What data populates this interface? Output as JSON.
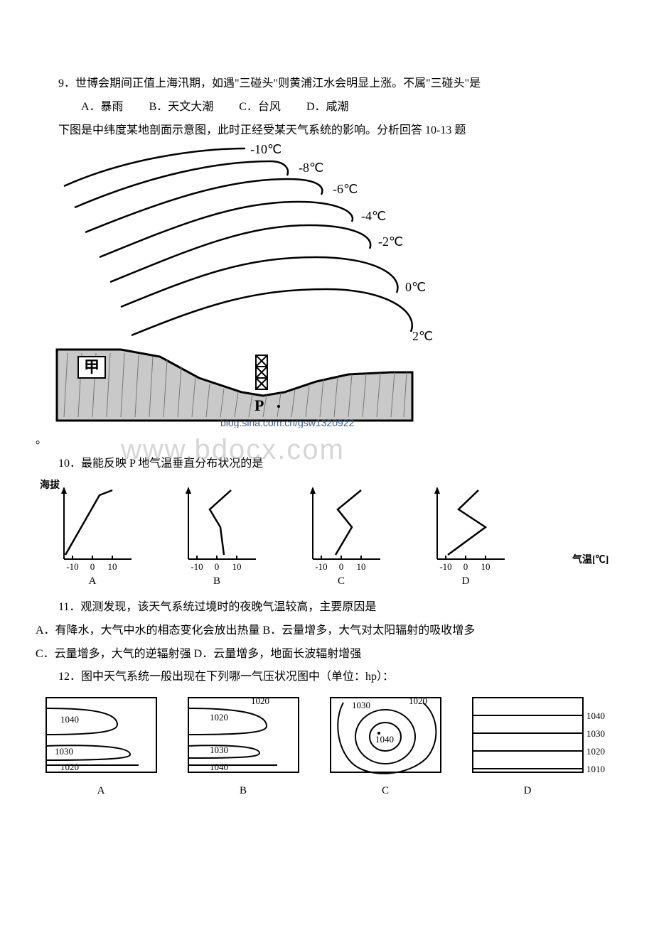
{
  "q9": {
    "text": "9．世博会期间正值上海汛期，如遇\"三碰头\"则黄浦江水会明显上涨。不属\"三碰头\"是",
    "optA": "A．暴雨",
    "optB": "B．天文大潮",
    "optC": "C．台风",
    "optD": "D．咸潮"
  },
  "fig1_intro": "下图是中纬度某地剖面示意图，此时正经受某天气系统的影响。分析回答 10-13 题",
  "fig1": {
    "isotherms": [
      {
        "label": "-10℃"
      },
      {
        "label": "-8℃"
      },
      {
        "label": "-6℃"
      },
      {
        "label": "-4℃"
      },
      {
        "label": "-2℃"
      },
      {
        "label": "0℃"
      },
      {
        "label": "2℃"
      }
    ],
    "area_label": "甲",
    "p_label": "P",
    "blog_text": "blog.sina.com.cn/gsw1320922",
    "bg": "#ffffff",
    "line_color": "#000000"
  },
  "period_after_fig1": "。",
  "watermark": "www.bdocx.com",
  "q10": {
    "text": "10．最能反映 P 地气温垂直分布状况的是"
  },
  "fig2": {
    "y_label": "海拔",
    "x_label": "气温[℃]",
    "ticks": [
      "-10",
      "0",
      "10"
    ],
    "panels": [
      {
        "label": "A",
        "points": [
          [
            2,
            94
          ],
          [
            50,
            10
          ],
          [
            68,
            3
          ]
        ]
      },
      {
        "label": "B",
        "points": [
          [
            50,
            94
          ],
          [
            45,
            55
          ],
          [
            30,
            30
          ],
          [
            60,
            3
          ]
        ]
      },
      {
        "label": "C",
        "points": [
          [
            32,
            94
          ],
          [
            55,
            55
          ],
          [
            35,
            30
          ],
          [
            68,
            3
          ]
        ]
      },
      {
        "label": "D",
        "points": [
          [
            15,
            94
          ],
          [
            68,
            55
          ],
          [
            30,
            30
          ],
          [
            58,
            3
          ]
        ]
      }
    ],
    "line_color": "#000000",
    "font_size": 13
  },
  "q11": {
    "text": "11．观测发现，该天气系统过境时的夜晚气温较高，主要原因是",
    "lineAB": " A．有降水，大气中水的相态变化会放出热量  B．云量增多，大气对太阳辐射的吸收增多",
    "lineCD": "C．云量增多，大气的逆辐射强        D．云量增多，地面长波辐射增强"
  },
  "q12": {
    "text": "12．图中天气系统一般出现在下列哪一气压状况图中（单位：hp）："
  },
  "fig3": {
    "panels": [
      {
        "label": "A",
        "values": [
          "1040",
          "1030",
          "1020"
        ]
      },
      {
        "label": "B",
        "values": [
          "1020",
          "1030",
          "1040",
          "1020"
        ]
      },
      {
        "label": "C",
        "values": [
          "1030",
          "1040",
          "1020"
        ]
      },
      {
        "label": "D",
        "values": [
          "1040",
          "1030",
          "1020",
          "1010"
        ]
      }
    ],
    "line_color": "#000000",
    "font_size": 13
  }
}
